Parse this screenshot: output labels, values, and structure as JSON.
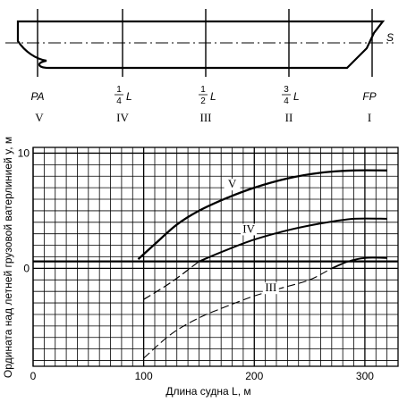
{
  "ship": {
    "stations": [
      {
        "label": "PA",
        "roman": "V"
      },
      {
        "label": "L",
        "frac_num": "1",
        "frac_den": "4",
        "roman": "IV"
      },
      {
        "label": "L",
        "frac_num": "1",
        "frac_den": "2",
        "roman": "III"
      },
      {
        "label": "L",
        "frac_num": "3",
        "frac_den": "4",
        "roman": "II"
      },
      {
        "label": "FP",
        "roman": "I"
      }
    ],
    "waterline_label": "S"
  },
  "chart_data": {
    "type": "line",
    "xlabel": "Длина судна L, м",
    "ylabel": "Ордината над летней грузовой ватерлинией y, м",
    "xlim": [
      0,
      330
    ],
    "ylim": [
      -8.5,
      10.5
    ],
    "x_ticks": [
      "0",
      "100",
      "200",
      "300"
    ],
    "y_ticks": [
      "10",
      "0"
    ],
    "grid": true,
    "baseline": {
      "y": 0.6,
      "x": [
        0,
        330
      ]
    },
    "series": [
      {
        "name": "V",
        "points": [
          [
            95,
            0.8
          ],
          [
            110,
            2.1
          ],
          [
            130,
            3.8
          ],
          [
            150,
            5.0
          ],
          [
            175,
            6.1
          ],
          [
            200,
            7.0
          ],
          [
            230,
            7.8
          ],
          [
            260,
            8.3
          ],
          [
            290,
            8.5
          ],
          [
            320,
            8.5
          ]
        ],
        "dashed_x": [],
        "stroke_width": 2.3
      },
      {
        "name": "IV",
        "points": [
          [
            100,
            -2.7
          ],
          [
            125,
            -1.2
          ],
          [
            150,
            0.6
          ],
          [
            175,
            1.6
          ],
          [
            200,
            2.5
          ],
          [
            230,
            3.3
          ],
          [
            260,
            3.9
          ],
          [
            290,
            4.3
          ],
          [
            320,
            4.3
          ]
        ],
        "dashed_until": 150,
        "stroke_width": 2.0
      },
      {
        "name": "III",
        "points": [
          [
            100,
            -7.8
          ],
          [
            125,
            -5.7
          ],
          [
            150,
            -4.3
          ],
          [
            175,
            -3.3
          ],
          [
            200,
            -2.4
          ],
          [
            225,
            -1.7
          ],
          [
            250,
            -1.0
          ],
          [
            270,
            0.0
          ],
          [
            285,
            0.6
          ],
          [
            300,
            0.9
          ],
          [
            320,
            0.9
          ]
        ],
        "dashed_until": 270,
        "stroke_width": 1.8
      }
    ]
  }
}
